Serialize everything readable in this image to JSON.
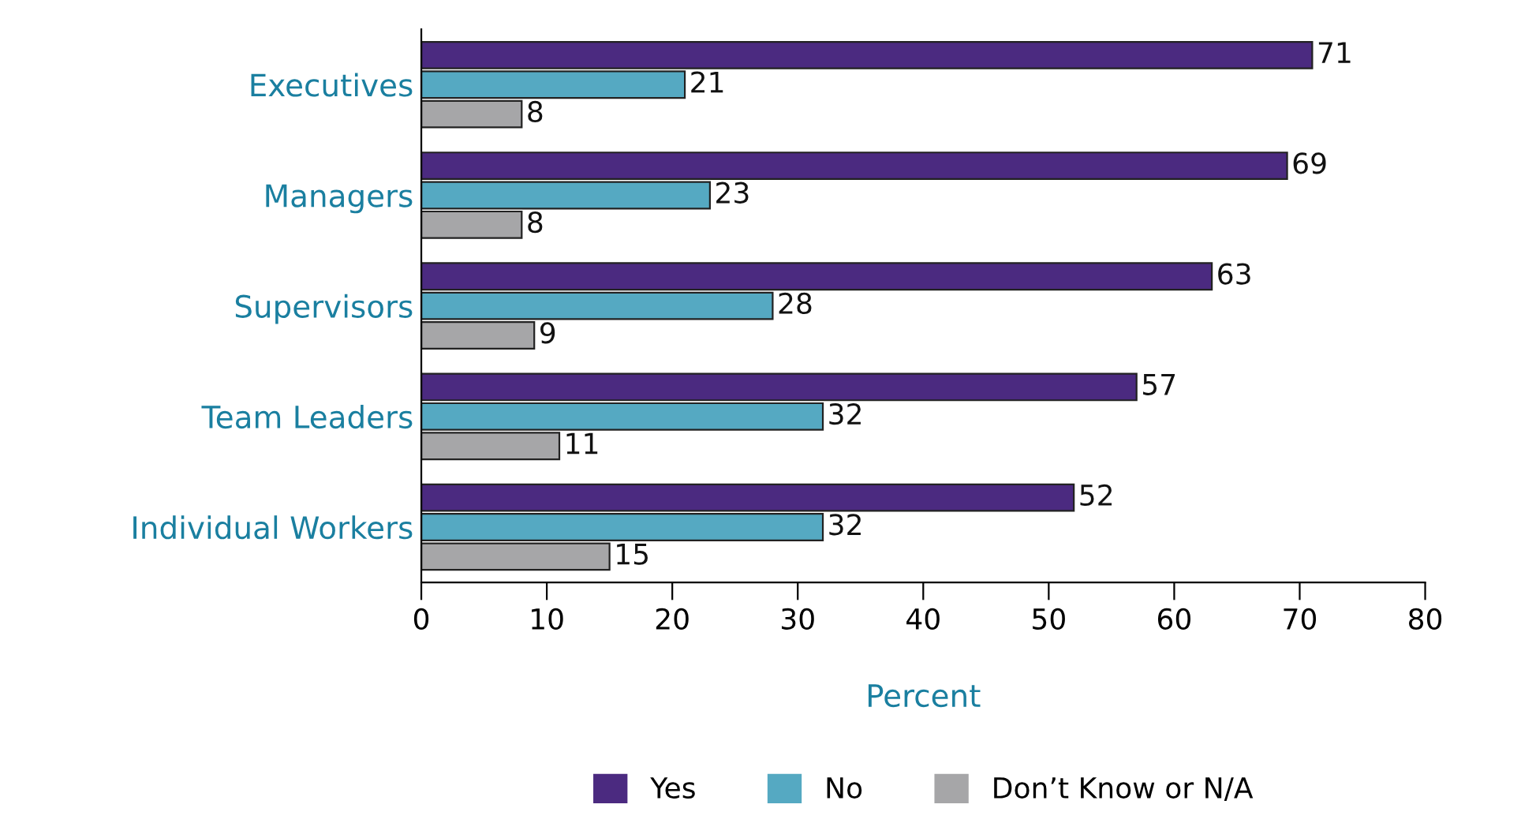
{
  "chart_data": {
    "type": "bar",
    "orientation": "horizontal",
    "xlabel": "Percent",
    "categories": [
      "Executives",
      "Managers",
      "Supervisors",
      "Team Leaders",
      "Individual Workers"
    ],
    "series": [
      {
        "name": "Yes",
        "color": "#4b2a80",
        "values": [
          71,
          69,
          63,
          57,
          52
        ]
      },
      {
        "name": "No",
        "color": "#55a9c2",
        "values": [
          21,
          23,
          28,
          32,
          32
        ]
      },
      {
        "name": "Don’t Know or N/A",
        "color": "#a6a6a8",
        "values": [
          8,
          8,
          9,
          11,
          15
        ]
      }
    ],
    "xlim": [
      0,
      80
    ],
    "xticks": [
      0,
      10,
      20,
      30,
      40,
      50,
      60,
      70,
      80
    ],
    "data_labels": true,
    "grid": false,
    "legend": "bottom"
  }
}
